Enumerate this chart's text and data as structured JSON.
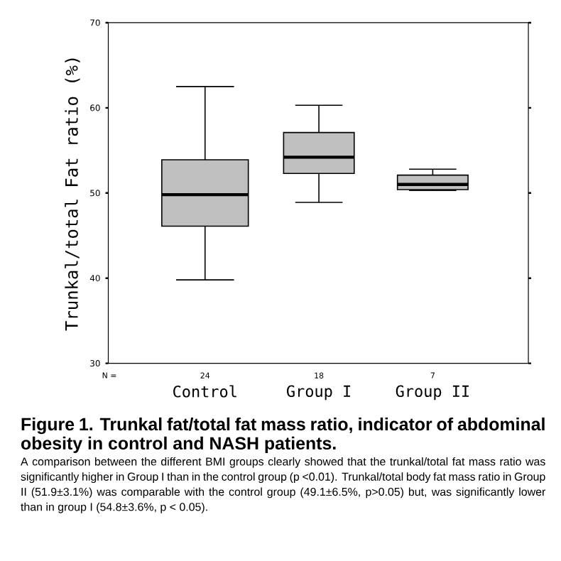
{
  "chart_data": {
    "type": "box",
    "title": "Figure 1. Trunkal fat/total fat mass ratio, indicator of abdominal obesity in control and NASH patients.",
    "ylabel": "Trunkal/total Fat ratio (%)",
    "categories": [
      "Control",
      "Group I",
      "Group II"
    ],
    "color": "#c0c0c0",
    "boxes": [
      {
        "low": 39.8,
        "q1": 46.1,
        "median": 49.8,
        "q3": 53.9,
        "high": 62.5
      },
      {
        "low": 48.9,
        "q1": 52.3,
        "median": 54.2,
        "q3": 57.1,
        "high": 60.3
      },
      {
        "low": 50.3,
        "q1": 50.4,
        "median": 51.0,
        "q3": 52.1,
        "high": 52.8
      }
    ],
    "ylim": [
      30,
      70
    ],
    "yticks": [
      30,
      40,
      50,
      60,
      70
    ],
    "annotations": [
      "N =",
      "24",
      "18",
      "7",
      "A comparison between the different BMI groups clearly showed that the trunkal/total fat mass ratio was significantly higher in Group I than in the control group (p <0.01). Trunkal/total body fat mass ratio in Group II (51.9±3.1%) was comparable with the control group (49.1±6.5%, p>0.05) but, was significantly lower than in group I (54.8±3.6%, p < 0.05)."
    ]
  }
}
